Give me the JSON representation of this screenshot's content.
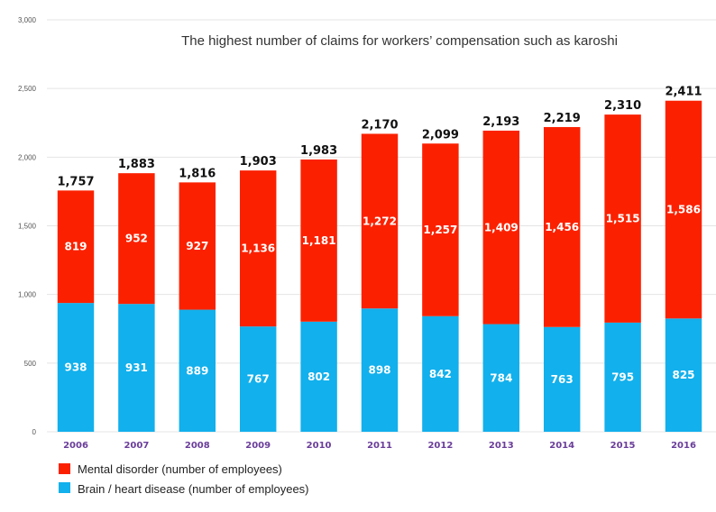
{
  "chart_data": {
    "type": "bar",
    "stacked": true,
    "title": "The highest number of claims for workers’ compensation  such as karoshi",
    "categories": [
      "2006",
      "2007",
      "2008",
      "2009",
      "2010",
      "2011",
      "2012",
      "2013",
      "2014",
      "2015",
      "2016"
    ],
    "series": [
      {
        "name": "Brain / heart disease (number of employees)",
        "color": "#12b0ec",
        "values": [
          938,
          931,
          889,
          767,
          802,
          898,
          842,
          784,
          763,
          795,
          825
        ]
      },
      {
        "name": "Mental disorder (number of employees)",
        "color": "#fb2100",
        "values": [
          819,
          952,
          927,
          1136,
          1181,
          1272,
          1257,
          1409,
          1456,
          1515,
          1586
        ]
      }
    ],
    "totals": [
      1757,
      1883,
      1816,
      1903,
      1983,
      2170,
      2099,
      2193,
      2219,
      2310,
      2411
    ],
    "total_labels": [
      "1,757",
      "1,883",
      "1,816",
      "1,903",
      "1,983",
      "2,170",
      "2,099",
      "2,193",
      "2,219",
      "2,310",
      "2,411"
    ],
    "segment_labels": {
      "brain": [
        "938",
        "931",
        "889",
        "767",
        "802",
        "898",
        "842",
        "784",
        "763",
        "795",
        "825"
      ],
      "mental": [
        "819",
        "952",
        "927",
        "1,136",
        "1,181",
        "1,272",
        "1,257",
        "1,409",
        "1,456",
        "1,515",
        "1,586"
      ]
    },
    "ylim": [
      0,
      3000
    ],
    "yticks": [
      0,
      500,
      1000,
      1500,
      2000,
      2500,
      3000
    ],
    "ytick_labels": [
      "0",
      "500",
      "1,000",
      "1,500",
      "2,000",
      "2,500",
      "3,000"
    ],
    "grid": true,
    "legend": {
      "position": "bottom-left",
      "entries": [
        {
          "label": "Mental disorder (number of employees)",
          "color": "#fb2100"
        },
        {
          "label": "Brain / heart disease (number of employees)",
          "color": "#12b0ec"
        }
      ]
    }
  }
}
